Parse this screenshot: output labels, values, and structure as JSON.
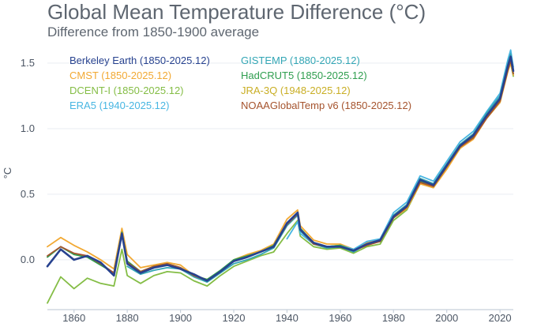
{
  "chart_data": {
    "type": "line",
    "title": "Global Mean Temperature Difference (°C)",
    "subtitle": "Difference from 1850-1900 average",
    "xlabel": "",
    "ylabel": "°C",
    "xlim": [
      1850,
      2025
    ],
    "ylim": [
      -0.38,
      1.62
    ],
    "x_ticks": [
      1860,
      1880,
      1900,
      1920,
      1940,
      1960,
      1980,
      2000,
      2020
    ],
    "y_ticks": [
      0.0,
      0.5,
      1.0,
      1.5
    ],
    "x_tick_labels": [
      "1860",
      "1880",
      "1900",
      "1920",
      "1940",
      "1960",
      "1980",
      "2000",
      "2020"
    ],
    "y_tick_labels": [
      "0.0",
      "0.5",
      "1.0",
      "1.5"
    ],
    "legend": {
      "placement": "top-left",
      "columns": 2
    },
    "series": [
      {
        "name": "Berkeley Earth (1850-2025.12)",
        "color": "#27428f",
        "x": [
          1850,
          1855,
          1860,
          1865,
          1870,
          1875,
          1878,
          1880,
          1885,
          1890,
          1895,
          1900,
          1905,
          1910,
          1915,
          1920,
          1925,
          1930,
          1935,
          1940,
          1944,
          1945,
          1950,
          1955,
          1960,
          1965,
          1970,
          1975,
          1980,
          1985,
          1990,
          1995,
          2000,
          2005,
          2010,
          2015,
          2020,
          2023,
          2024,
          2025
        ],
        "y": [
          -0.05,
          0.08,
          0.0,
          0.03,
          -0.02,
          -0.12,
          0.2,
          -0.03,
          -0.1,
          -0.06,
          -0.04,
          -0.07,
          -0.11,
          -0.16,
          -0.09,
          -0.01,
          0.02,
          0.06,
          0.1,
          0.28,
          0.36,
          0.23,
          0.13,
          0.1,
          0.1,
          0.07,
          0.12,
          0.15,
          0.33,
          0.41,
          0.61,
          0.57,
          0.72,
          0.87,
          0.95,
          1.1,
          1.23,
          1.48,
          1.55,
          1.44
        ]
      },
      {
        "name": "CMST (1850-2025.12)",
        "color": "#f2a933",
        "x": [
          1850,
          1855,
          1860,
          1865,
          1870,
          1875,
          1878,
          1880,
          1885,
          1890,
          1895,
          1900,
          1905,
          1910,
          1915,
          1920,
          1925,
          1930,
          1935,
          1940,
          1944,
          1945,
          1950,
          1955,
          1960,
          1965,
          1970,
          1975,
          1980,
          1985,
          1990,
          1995,
          2000,
          2005,
          2010,
          2015,
          2020,
          2023,
          2024,
          2025
        ],
        "y": [
          0.1,
          0.17,
          0.11,
          0.06,
          0.0,
          -0.07,
          0.24,
          0.04,
          -0.06,
          -0.04,
          -0.02,
          -0.04,
          -0.12,
          -0.15,
          -0.09,
          0.0,
          0.04,
          0.07,
          0.12,
          0.31,
          0.38,
          0.26,
          0.15,
          0.12,
          0.12,
          0.08,
          0.13,
          0.15,
          0.32,
          0.39,
          0.58,
          0.55,
          0.69,
          0.85,
          0.92,
          1.08,
          1.2,
          1.44,
          1.5,
          1.41
        ]
      },
      {
        "name": "DCENT-I (1850-2025.12)",
        "color": "#84bd45",
        "x": [
          1850,
          1855,
          1860,
          1865,
          1870,
          1875,
          1878,
          1880,
          1885,
          1890,
          1895,
          1900,
          1905,
          1910,
          1915,
          1920,
          1925,
          1930,
          1935,
          1940,
          1944,
          1945,
          1950,
          1955,
          1960,
          1965,
          1970,
          1975,
          1980,
          1985,
          1990,
          1995,
          2000,
          2005,
          2010,
          2015,
          2020,
          2023,
          2024,
          2025
        ],
        "y": [
          -0.33,
          -0.13,
          -0.22,
          -0.14,
          -0.18,
          -0.2,
          0.08,
          -0.12,
          -0.18,
          -0.12,
          -0.09,
          -0.1,
          -0.16,
          -0.2,
          -0.12,
          -0.05,
          -0.01,
          0.03,
          0.06,
          0.2,
          0.3,
          0.18,
          0.1,
          0.08,
          0.09,
          0.05,
          0.1,
          0.12,
          0.3,
          0.38,
          0.58,
          0.55,
          0.7,
          0.85,
          0.93,
          1.08,
          1.2,
          1.45,
          1.5,
          1.4
        ]
      },
      {
        "name": "ERA5 (1940-2025.12)",
        "color": "#48b6e2",
        "x": [
          1940,
          1944,
          1945,
          1950,
          1955,
          1960,
          1965,
          1970,
          1975,
          1980,
          1985,
          1990,
          1995,
          2000,
          2005,
          2010,
          2015,
          2020,
          2023,
          2024,
          2025
        ],
        "y": [
          0.16,
          0.29,
          0.2,
          0.12,
          0.1,
          0.11,
          0.08,
          0.14,
          0.16,
          0.36,
          0.44,
          0.64,
          0.6,
          0.75,
          0.9,
          0.98,
          1.13,
          1.27,
          1.53,
          1.6,
          1.47
        ]
      },
      {
        "name": "GISTEMP (1880-2025.12)",
        "color": "#33a6b5",
        "x": [
          1880,
          1885,
          1890,
          1895,
          1900,
          1905,
          1910,
          1915,
          1920,
          1925,
          1930,
          1935,
          1940,
          1944,
          1945,
          1950,
          1955,
          1960,
          1965,
          1970,
          1975,
          1980,
          1985,
          1990,
          1995,
          2000,
          2005,
          2010,
          2015,
          2020,
          2023,
          2024,
          2025
        ],
        "y": [
          -0.05,
          -0.11,
          -0.08,
          -0.06,
          -0.07,
          -0.13,
          -0.17,
          -0.1,
          -0.03,
          0.0,
          0.04,
          0.09,
          0.26,
          0.34,
          0.22,
          0.12,
          0.09,
          0.1,
          0.06,
          0.12,
          0.14,
          0.34,
          0.42,
          0.62,
          0.58,
          0.73,
          0.88,
          0.96,
          1.12,
          1.25,
          1.5,
          1.57,
          1.45
        ]
      },
      {
        "name": "HadCRUT5 (1850-2025.12)",
        "color": "#2f9e4f",
        "x": [
          1850,
          1855,
          1860,
          1865,
          1870,
          1875,
          1878,
          1880,
          1885,
          1890,
          1895,
          1900,
          1905,
          1910,
          1915,
          1920,
          1925,
          1930,
          1935,
          1940,
          1944,
          1945,
          1950,
          1955,
          1960,
          1965,
          1970,
          1975,
          1980,
          1985,
          1990,
          1995,
          2000,
          2005,
          2010,
          2015,
          2020,
          2023,
          2024,
          2025
        ],
        "y": [
          0.02,
          0.1,
          0.04,
          0.02,
          -0.04,
          -0.1,
          0.21,
          -0.01,
          -0.09,
          -0.05,
          -0.03,
          -0.06,
          -0.12,
          -0.15,
          -0.08,
          0.0,
          0.03,
          0.06,
          0.11,
          0.28,
          0.36,
          0.24,
          0.13,
          0.1,
          0.11,
          0.07,
          0.12,
          0.14,
          0.32,
          0.4,
          0.6,
          0.56,
          0.71,
          0.86,
          0.94,
          1.09,
          1.22,
          1.46,
          1.53,
          1.42
        ]
      },
      {
        "name": "JRA-3Q (1948-2025.12)",
        "color": "#c9ae24",
        "x": [
          1948,
          1950,
          1955,
          1960,
          1965,
          1970,
          1975,
          1980,
          1985,
          1990,
          1995,
          2000,
          2005,
          2010,
          2015,
          2020,
          2023,
          2024,
          2025
        ],
        "y": [
          0.16,
          0.12,
          0.1,
          0.11,
          0.07,
          0.12,
          0.15,
          0.34,
          0.42,
          0.62,
          0.58,
          0.73,
          0.88,
          0.96,
          1.11,
          1.24,
          1.49,
          1.56,
          1.44
        ]
      },
      {
        "name": "NOAAGlobalTemp v6 (1850-2025.12)",
        "color": "#a5532d",
        "x": [
          1850,
          1855,
          1860,
          1865,
          1870,
          1875,
          1878,
          1880,
          1885,
          1890,
          1895,
          1900,
          1905,
          1910,
          1915,
          1920,
          1925,
          1930,
          1935,
          1940,
          1944,
          1945,
          1950,
          1955,
          1960,
          1965,
          1970,
          1975,
          1980,
          1985,
          1990,
          1995,
          2000,
          2005,
          2010,
          2015,
          2020,
          2023,
          2024,
          2025
        ],
        "y": [
          0.03,
          0.1,
          0.05,
          0.03,
          -0.03,
          -0.1,
          0.2,
          -0.02,
          -0.09,
          -0.05,
          -0.03,
          -0.06,
          -0.12,
          -0.16,
          -0.09,
          -0.01,
          0.02,
          0.06,
          0.1,
          0.27,
          0.35,
          0.23,
          0.12,
          0.1,
          0.1,
          0.07,
          0.11,
          0.14,
          0.32,
          0.4,
          0.59,
          0.56,
          0.71,
          0.86,
          0.93,
          1.08,
          1.21,
          1.45,
          1.52,
          1.42
        ]
      }
    ]
  }
}
